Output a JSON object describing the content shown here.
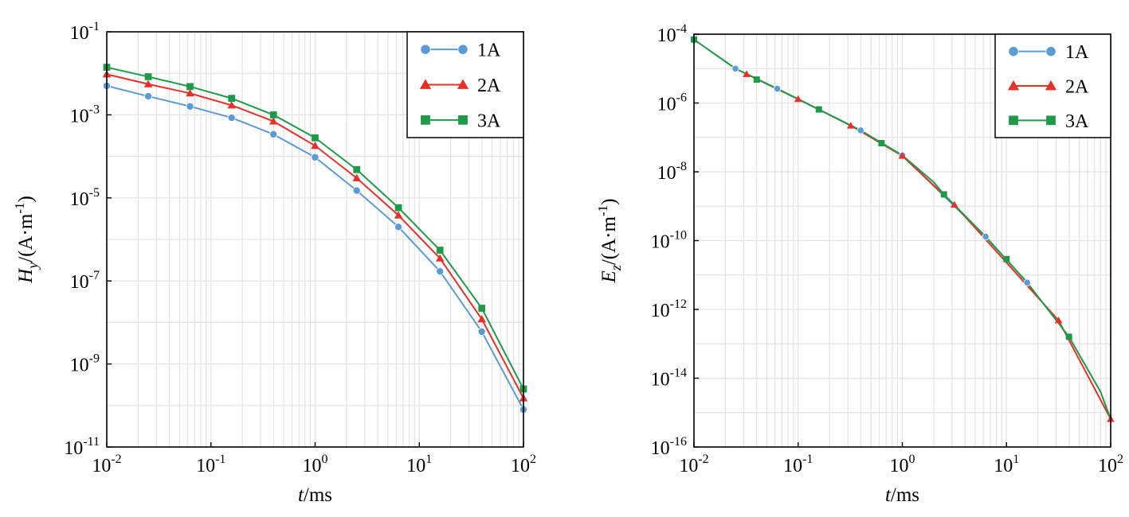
{
  "chart_data": [
    {
      "type": "line",
      "x_scale": "log",
      "y_scale": "log",
      "xlim": [
        0.01,
        100
      ],
      "ylim": [
        1e-11,
        0.1
      ],
      "x_ticks": [
        {
          "base": "10",
          "exp": "-2"
        },
        {
          "base": "10",
          "exp": "-1"
        },
        {
          "base": "10",
          "exp": "0"
        },
        {
          "base": "10",
          "exp": "1"
        },
        {
          "base": "10",
          "exp": "2"
        }
      ],
      "y_ticks": [
        {
          "base": "10",
          "exp": "-1"
        },
        {
          "base": "10",
          "exp": "-3"
        },
        {
          "base": "10",
          "exp": "-5"
        },
        {
          "base": "10",
          "exp": "-7"
        },
        {
          "base": "10",
          "exp": "-9"
        },
        {
          "base": "10",
          "exp": "-11"
        }
      ],
      "xlabel": {
        "var": "t",
        "rest": "/ms"
      },
      "ylabel": {
        "var": "H",
        "sub": "y",
        "rest": "/(A·m",
        "sup": "-1",
        "close": ")"
      },
      "grid": true,
      "legend_position": "top-right",
      "series": [
        {
          "name": "1A",
          "color": "#5b9bd5",
          "marker": "circle",
          "x": [
            0.01,
            0.025,
            0.063,
            0.158,
            0.398,
            1.0,
            2.51,
            6.31,
            15.8,
            39.8,
            100
          ],
          "y": [
            0.005,
            0.0028,
            0.0016,
            0.00085,
            0.00034,
            9.5e-05,
            1.5e-05,
            2e-06,
            1.7e-07,
            6e-09,
            8e-11
          ]
        },
        {
          "name": "2A",
          "color": "#e8302a",
          "marker": "triangle",
          "x": [
            0.01,
            0.025,
            0.063,
            0.158,
            0.398,
            1.0,
            2.51,
            6.31,
            15.8,
            39.8,
            100
          ],
          "y": [
            0.0095,
            0.0055,
            0.0033,
            0.0017,
            0.0007,
            0.00018,
            3e-05,
            3.8e-06,
            3.5e-07,
            1.2e-08,
            1.5e-10
          ]
        },
        {
          "name": "3A",
          "color": "#1e9a48",
          "marker": "square",
          "x": [
            0.01,
            0.025,
            0.063,
            0.158,
            0.398,
            1.0,
            2.51,
            6.31,
            15.8,
            39.8,
            100
          ],
          "y": [
            0.014,
            0.0083,
            0.0048,
            0.0025,
            0.001,
            0.00028,
            4.8e-05,
            5.8e-06,
            5.5e-07,
            2.2e-08,
            2.5e-10
          ]
        }
      ]
    },
    {
      "type": "line",
      "x_scale": "log",
      "y_scale": "log",
      "xlim": [
        0.01,
        100
      ],
      "ylim": [
        1e-16,
        0.0001
      ],
      "x_ticks": [
        {
          "base": "10",
          "exp": "-2"
        },
        {
          "base": "10",
          "exp": "-1"
        },
        {
          "base": "10",
          "exp": "0"
        },
        {
          "base": "10",
          "exp": "1"
        },
        {
          "base": "10",
          "exp": "2"
        }
      ],
      "y_ticks": [
        {
          "base": "10",
          "exp": "-4"
        },
        {
          "base": "10",
          "exp": "-6"
        },
        {
          "base": "10",
          "exp": "-8"
        },
        {
          "base": "10",
          "exp": "-10"
        },
        {
          "base": "10",
          "exp": "-12"
        },
        {
          "base": "10",
          "exp": "-14"
        },
        {
          "base": "10",
          "exp": "-16"
        }
      ],
      "xlabel": {
        "var": "t",
        "rest": "/ms"
      },
      "ylabel": {
        "var": "E",
        "sub": "z",
        "rest": "/(A·m",
        "sup": "-1",
        "close": ")"
      },
      "grid": true,
      "legend_position": "top-right",
      "series": [
        {
          "name": "1A",
          "color": "#5b9bd5",
          "marker": "circle",
          "x": [
            0.025,
            0.063,
            0.398,
            1.0,
            6.31,
            15.8
          ],
          "y": [
            1e-05,
            2.6e-06,
            1.6e-07,
            3e-08,
            1.3e-10,
            6e-12
          ]
        },
        {
          "name": "2A",
          "color": "#e8302a",
          "marker": "triangle",
          "x": [
            0.032,
            0.1,
            0.32,
            1.0,
            3.16,
            31.6,
            100
          ],
          "y": [
            6.9e-06,
            1.3e-06,
            2.2e-07,
            2.9e-08,
            1.1e-09,
            4.8e-13,
            6.5e-16
          ]
        },
        {
          "name": "3A",
          "color": "#1e9a48",
          "marker": "square",
          "x": [
            0.01,
            0.04,
            0.158,
            0.631,
            2.51,
            10,
            39.8
          ],
          "y": [
            7e-05,
            4.8e-06,
            6.5e-07,
            6.8e-08,
            2.2e-09,
            2.9e-11,
            1.6e-13
          ],
          "curve_x": [
            0.01,
            0.025,
            0.063,
            0.158,
            0.398,
            1.0,
            2.0,
            2.51,
            6.31,
            15.8,
            39.8,
            80,
            100
          ],
          "curve_y": [
            7e-05,
            1e-05,
            2.6e-06,
            6.5e-07,
            1.6e-07,
            3e-08,
            5e-09,
            2.2e-09,
            1.3e-10,
            6e-12,
            1.6e-13,
            4e-15,
            6.5e-16
          ]
        }
      ]
    }
  ]
}
